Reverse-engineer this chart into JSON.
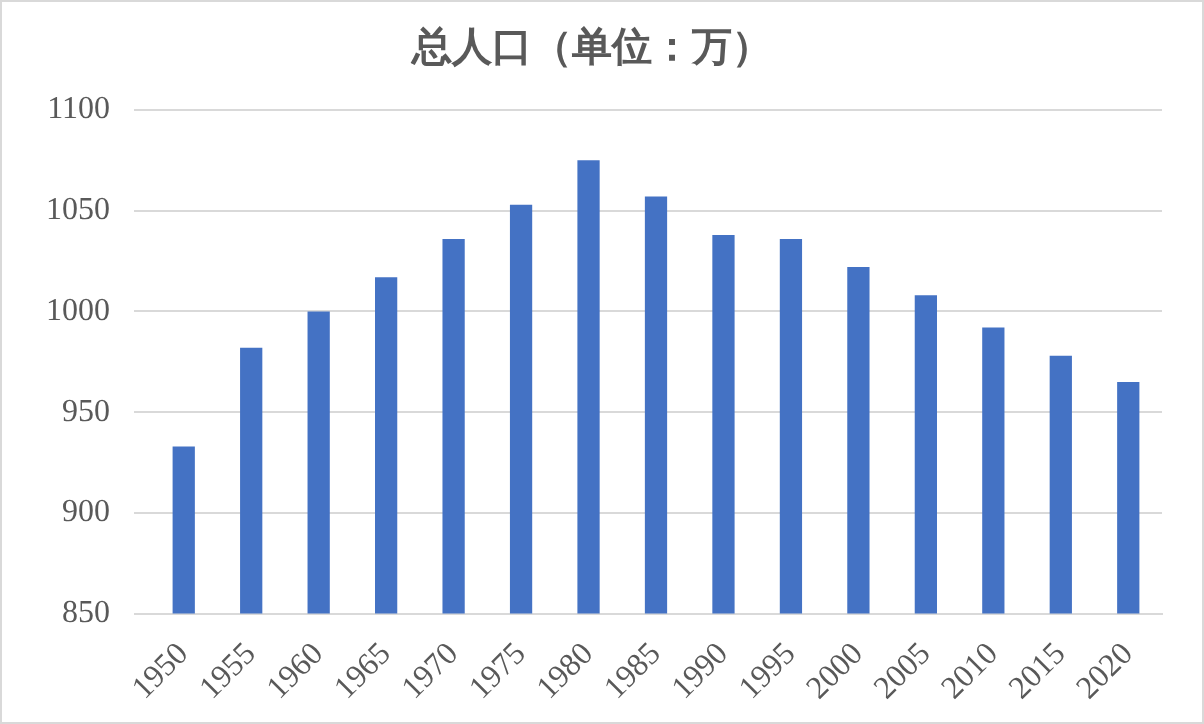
{
  "chart_data": {
    "type": "bar",
    "title": "总人口（单位：万）",
    "categories": [
      "1950",
      "1955",
      "1960",
      "1965",
      "1970",
      "1975",
      "1980",
      "1985",
      "1990",
      "1995",
      "2000",
      "2005",
      "2010",
      "2015",
      "2020"
    ],
    "values": [
      933,
      982,
      1000,
      1017,
      1036,
      1053,
      1075,
      1057,
      1038,
      1036,
      1022,
      1008,
      992,
      978,
      965
    ],
    "color": "#4472c4",
    "ylim": [
      850,
      1100
    ],
    "yticks": [
      850,
      900,
      950,
      1000,
      1050,
      1100
    ],
    "grid": "y"
  }
}
